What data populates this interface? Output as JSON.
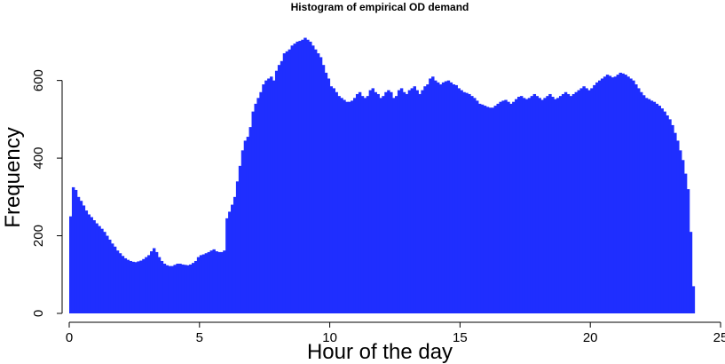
{
  "chart_data": {
    "type": "bar",
    "title": "Histogram of empirical OD demand",
    "xlabel": "Hour of the day",
    "ylabel": "Frequency",
    "xlim": [
      0,
      25
    ],
    "ylim": [
      0,
      725
    ],
    "x_ticks": [
      0,
      5,
      10,
      15,
      20,
      25
    ],
    "x_tick_labels": [
      "0",
      "5",
      "10",
      "15",
      "20",
      "25"
    ],
    "y_ticks": [
      0,
      200,
      400,
      600
    ],
    "y_tick_labels": [
      "0",
      "200",
      "400",
      "600"
    ],
    "bin_width_hours": 0.1,
    "series": [
      {
        "color": "#1f2eff",
        "bin_start": [
          0,
          0.1,
          0.2,
          0.3,
          0.4,
          0.5,
          0.6,
          0.7,
          0.8,
          0.9,
          1.0,
          1.1,
          1.2,
          1.3,
          1.4,
          1.5,
          1.6,
          1.7,
          1.8,
          1.9,
          2.0,
          2.1,
          2.2,
          2.3,
          2.4,
          2.5,
          2.6,
          2.7,
          2.8,
          2.9,
          3.0,
          3.1,
          3.2,
          3.3,
          3.4,
          3.5,
          3.6,
          3.7,
          3.8,
          3.9,
          4.0,
          4.1,
          4.2,
          4.3,
          4.4,
          4.5,
          4.6,
          4.7,
          4.8,
          4.9,
          5.0,
          5.1,
          5.2,
          5.3,
          5.4,
          5.5,
          5.6,
          5.7,
          5.8,
          5.9,
          6.0,
          6.1,
          6.2,
          6.3,
          6.4,
          6.5,
          6.6,
          6.7,
          6.8,
          6.9,
          7.0,
          7.1,
          7.2,
          7.3,
          7.4,
          7.5,
          7.6,
          7.7,
          7.8,
          7.9,
          8.0,
          8.1,
          8.2,
          8.3,
          8.4,
          8.5,
          8.6,
          8.7,
          8.8,
          8.9,
          9.0,
          9.1,
          9.2,
          9.3,
          9.4,
          9.5,
          9.6,
          9.7,
          9.8,
          9.9,
          10.0,
          10.1,
          10.2,
          10.3,
          10.4,
          10.5,
          10.6,
          10.7,
          10.8,
          10.9,
          11.0,
          11.1,
          11.2,
          11.3,
          11.4,
          11.5,
          11.6,
          11.7,
          11.8,
          11.9,
          12.0,
          12.1,
          12.2,
          12.3,
          12.4,
          12.5,
          12.6,
          12.7,
          12.8,
          12.9,
          13.0,
          13.1,
          13.2,
          13.3,
          13.4,
          13.5,
          13.6,
          13.7,
          13.8,
          13.9,
          14.0,
          14.1,
          14.2,
          14.3,
          14.4,
          14.5,
          14.6,
          14.7,
          14.8,
          14.9,
          15.0,
          15.1,
          15.2,
          15.3,
          15.4,
          15.5,
          15.6,
          15.7,
          15.8,
          15.9,
          16.0,
          16.1,
          16.2,
          16.3,
          16.4,
          16.5,
          16.6,
          16.7,
          16.8,
          16.9,
          17.0,
          17.1,
          17.2,
          17.3,
          17.4,
          17.5,
          17.6,
          17.7,
          17.8,
          17.9,
          18.0,
          18.1,
          18.2,
          18.3,
          18.4,
          18.5,
          18.6,
          18.7,
          18.8,
          18.9,
          19.0,
          19.1,
          19.2,
          19.3,
          19.4,
          19.5,
          19.6,
          19.7,
          19.8,
          19.9,
          20.0,
          20.1,
          20.2,
          20.3,
          20.4,
          20.5,
          20.6,
          20.7,
          20.8,
          20.9,
          21.0,
          21.1,
          21.2,
          21.3,
          21.4,
          21.5,
          21.6,
          21.7,
          21.8,
          21.9,
          22.0,
          22.1,
          22.2,
          22.3,
          22.4,
          22.5,
          22.6,
          22.7,
          22.8,
          22.9,
          23.0,
          23.1,
          23.2,
          23.3,
          23.4,
          23.5,
          23.6,
          23.7,
          23.8,
          23.9
        ],
        "values": [
          250,
          325,
          318,
          300,
          290,
          278,
          265,
          255,
          248,
          240,
          232,
          225,
          218,
          210,
          200,
          190,
          180,
          172,
          162,
          155,
          148,
          142,
          138,
          135,
          133,
          132,
          134,
          136,
          140,
          145,
          150,
          160,
          168,
          158,
          145,
          135,
          128,
          124,
          122,
          122,
          125,
          128,
          128,
          126,
          125,
          124,
          126,
          130,
          135,
          145,
          150,
          152,
          155,
          158,
          162,
          165,
          160,
          158,
          158,
          162,
          245,
          262,
          280,
          300,
          340,
          380,
          420,
          445,
          455,
          480,
          520,
          540,
          555,
          570,
          590,
          600,
          605,
          610,
          600,
          625,
          640,
          650,
          670,
          675,
          680,
          690,
          695,
          700,
          702,
          705,
          710,
          705,
          700,
          690,
          680,
          670,
          660,
          640,
          620,
          605,
          585,
          580,
          570,
          560,
          555,
          550,
          545,
          545,
          548,
          555,
          565,
          570,
          560,
          555,
          560,
          575,
          580,
          570,
          565,
          555,
          560,
          570,
          575,
          570,
          555,
          560,
          575,
          580,
          570,
          565,
          575,
          580,
          585,
          575,
          565,
          575,
          585,
          590,
          605,
          610,
          600,
          595,
          590,
          595,
          598,
          600,
          595,
          590,
          588,
          580,
          575,
          570,
          568,
          565,
          560,
          555,
          548,
          540,
          538,
          535,
          532,
          530,
          530,
          535,
          540,
          545,
          548,
          550,
          545,
          540,
          545,
          552,
          558,
          560,
          555,
          552,
          555,
          560,
          565,
          560,
          555,
          550,
          555,
          560,
          565,
          558,
          552,
          555,
          560,
          565,
          570,
          565,
          560,
          565,
          570,
          575,
          580,
          585,
          580,
          575,
          580,
          588,
          595,
          600,
          605,
          610,
          615,
          612,
          608,
          610,
          615,
          620,
          618,
          615,
          610,
          605,
          600,
          590,
          580,
          570,
          562,
          555,
          552,
          548,
          545,
          540,
          535,
          528,
          520,
          510,
          500,
          485,
          465,
          445,
          420,
          395,
          360,
          320,
          210,
          70
        ]
      }
    ]
  }
}
